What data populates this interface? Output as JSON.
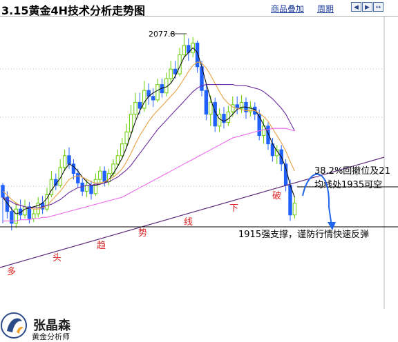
{
  "header": {
    "title": "3.15黄金4H技术分析走势图",
    "overlay_link": "商品叠加",
    "period_link": "周期"
  },
  "nav_icons": [
    "arrow-left-icon",
    "arrow-right-icon",
    "arrow-both-icon"
  ],
  "colors": {
    "up_candle": "#66cc00",
    "down_candle": "#2060ff",
    "ma_short": "#101010",
    "ma_mid": "#e8a040",
    "ma_long": "#6a2aa0",
    "ma_longest": "#ee66ee",
    "trendline": "#5a2a7a",
    "annotation": "#dd2020",
    "forecast_arrow": "#2266ee"
  },
  "chart_data": {
    "type": "candlestick",
    "title": "3.15黄金4H技术分析走势图",
    "high_label": "2077.8",
    "y_reference": {
      "high": 2077.8,
      "support": 1915,
      "resistance": 1935
    },
    "candles": [
      [
        1950,
        1940,
        1952,
        1918
      ],
      [
        1940,
        1928,
        1945,
        1922
      ],
      [
        1928,
        1918,
        1932,
        1912
      ],
      [
        1918,
        1930,
        1936,
        1914
      ],
      [
        1930,
        1925,
        1938,
        1921
      ],
      [
        1925,
        1932,
        1938,
        1922
      ],
      [
        1932,
        1922,
        1936,
        1918
      ],
      [
        1922,
        1926,
        1930,
        1919
      ],
      [
        1926,
        1935,
        1940,
        1923
      ],
      [
        1935,
        1930,
        1941,
        1926
      ],
      [
        1930,
        1942,
        1948,
        1928
      ],
      [
        1942,
        1955,
        1962,
        1940
      ],
      [
        1955,
        1950,
        1960,
        1946
      ],
      [
        1950,
        1965,
        1972,
        1948
      ],
      [
        1965,
        1975,
        1980,
        1962
      ],
      [
        1975,
        1968,
        1982,
        1964
      ],
      [
        1968,
        1960,
        1972,
        1955
      ],
      [
        1960,
        1952,
        1964,
        1948
      ],
      [
        1952,
        1945,
        1956,
        1941
      ],
      [
        1945,
        1950,
        1955,
        1940
      ],
      [
        1950,
        1943,
        1954,
        1938
      ],
      [
        1943,
        1955,
        1960,
        1941
      ],
      [
        1955,
        1962,
        1966,
        1951
      ],
      [
        1962,
        1953,
        1966,
        1949
      ],
      [
        1953,
        1960,
        1964,
        1950
      ],
      [
        1960,
        1968,
        1972,
        1957
      ],
      [
        1968,
        1975,
        1980,
        1965
      ],
      [
        1975,
        1985,
        1990,
        1972
      ],
      [
        1985,
        1995,
        2002,
        1982
      ],
      [
        1995,
        2010,
        2018,
        1992
      ],
      [
        2010,
        2020,
        2028,
        2006
      ],
      [
        2020,
        2015,
        2028,
        2010
      ],
      [
        2015,
        2030,
        2038,
        2012
      ],
      [
        2030,
        2025,
        2036,
        2018
      ],
      [
        2025,
        2022,
        2032,
        2016
      ],
      [
        2022,
        2035,
        2040,
        2020
      ],
      [
        2035,
        2028,
        2040,
        2024
      ],
      [
        2028,
        2040,
        2045,
        2025
      ],
      [
        2040,
        2048,
        2055,
        2036
      ],
      [
        2048,
        2044,
        2055,
        2040
      ],
      [
        2044,
        2060,
        2066,
        2042
      ],
      [
        2060,
        2068,
        2077.8,
        2058
      ],
      [
        2068,
        2062,
        2074,
        2055
      ],
      [
        2062,
        2070,
        2075,
        2058
      ],
      [
        2070,
        2050,
        2072,
        2045
      ],
      [
        2050,
        2030,
        2055,
        2025
      ],
      [
        2030,
        2010,
        2036,
        2005
      ],
      [
        2010,
        2020,
        2026,
        2000
      ],
      [
        2020,
        2000,
        2024,
        1995
      ],
      [
        2000,
        2010,
        2015,
        1995
      ],
      [
        2010,
        2003,
        2016,
        1998
      ],
      [
        2003,
        2012,
        2017,
        2000
      ],
      [
        2012,
        2018,
        2025,
        2008
      ],
      [
        2018,
        2015,
        2025,
        2010
      ],
      [
        2015,
        2020,
        2026,
        2011
      ],
      [
        2020,
        2012,
        2024,
        2006
      ],
      [
        2012,
        2016,
        2021,
        2008
      ],
      [
        2016,
        2010,
        2020,
        2005
      ],
      [
        2010,
        1992,
        2014,
        1988
      ],
      [
        1992,
        2000,
        2006,
        1985
      ],
      [
        2000,
        1985,
        2003,
        1980
      ],
      [
        1985,
        1975,
        1990,
        1970
      ],
      [
        1975,
        1980,
        1984,
        1968
      ],
      [
        1980,
        1968,
        1984,
        1962
      ],
      [
        1968,
        1950,
        1972,
        1945
      ],
      [
        1950,
        1925,
        1955,
        1920
      ],
      [
        1925,
        1935,
        1940,
        1922
      ]
    ],
    "moving_averages": [
      {
        "role": "ma_short",
        "values": [
          1940,
          1935,
          1930,
          1926,
          1927,
          1930,
          1931,
          1932,
          1933,
          1935,
          1939,
          1946,
          1951,
          1956,
          1963,
          1968,
          1966,
          1962,
          1957,
          1953,
          1950,
          1950,
          1951,
          1952,
          1955,
          1960,
          1966,
          1973,
          1982,
          1993,
          2004,
          2013,
          2020,
          2025,
          2028,
          2030,
          2032,
          2033,
          2036,
          2042,
          2050,
          2058,
          2062,
          2066,
          2062,
          2050,
          2036,
          2023,
          2012,
          2006,
          2004,
          2006,
          2010,
          2014,
          2016,
          2016,
          2015,
          2014,
          2008,
          2001,
          1994,
          1985,
          1979,
          1974,
          1965,
          1950,
          1940
        ]
      },
      {
        "role": "ma_mid",
        "values": [
          1945,
          1942,
          1938,
          1935,
          1933,
          1932,
          1931,
          1930,
          1930,
          1931,
          1933,
          1937,
          1941,
          1945,
          1950,
          1955,
          1957,
          1958,
          1957,
          1955,
          1953,
          1952,
          1952,
          1953,
          1955,
          1957,
          1960,
          1964,
          1970,
          1977,
          1985,
          1992,
          1998,
          2004,
          2009,
          2013,
          2017,
          2021,
          2025,
          2029,
          2034,
          2040,
          2046,
          2051,
          2054,
          2053,
          2049,
          2043,
          2036,
          2029,
          2023,
          2019,
          2016,
          2015,
          2014,
          2013,
          2013,
          2013,
          2011,
          2008,
          2004,
          1998,
          1992,
          1986,
          1979,
          1970,
          1962
        ]
      },
      {
        "role": "ma_long",
        "values": [
          1940,
          1938,
          1936,
          1934,
          1933,
          1932,
          1931,
          1931,
          1931,
          1932,
          1933,
          1934,
          1936,
          1938,
          1941,
          1944,
          1946,
          1948,
          1949,
          1950,
          1950,
          1951,
          1951,
          1952,
          1953,
          1955,
          1957,
          1960,
          1963,
          1967,
          1972,
          1977,
          1982,
          1987,
          1992,
          1997,
          2001,
          2005,
          2009,
          2013,
          2017,
          2021,
          2025,
          2029,
          2032,
          2034,
          2035,
          2035,
          2035,
          2035,
          2035,
          2035,
          2035,
          2034,
          2034,
          2034,
          2033,
          2032,
          2031,
          2029,
          2026,
          2023,
          2019,
          2015,
          2010,
          2003,
          1996
        ]
      },
      {
        "role": "ma_longest",
        "values": [
          1920,
          1920,
          1920,
          1920,
          1921,
          1921,
          1921,
          1922,
          1922,
          1923,
          1923,
          1924,
          1925,
          1926,
          1927,
          1928,
          1929,
          1930,
          1931,
          1932,
          1933,
          1934,
          1935,
          1936,
          1937,
          1938,
          1939,
          1940,
          1942,
          1944,
          1946,
          1948,
          1950,
          1952,
          1954,
          1956,
          1958,
          1960,
          1962,
          1964,
          1966,
          1968,
          1970,
          1972,
          1974,
          1976,
          1978,
          1980,
          1982,
          1984,
          1986,
          1988,
          1990,
          1991,
          1992,
          1993,
          1994,
          1995,
          1996,
          1997,
          1997,
          1998,
          1998,
          1998,
          1998,
          1997,
          1996
        ]
      }
    ],
    "annotations": [
      "38.2%回撤位及21",
      "均线处1935可空",
      "1915强支撑，谨防行情快速反弹"
    ],
    "trendline_text": [
      "多",
      "头",
      "趋",
      "势",
      "线",
      "下",
      "破"
    ]
  },
  "logo": {
    "name": "张晶森",
    "role": "黄金分析师"
  }
}
